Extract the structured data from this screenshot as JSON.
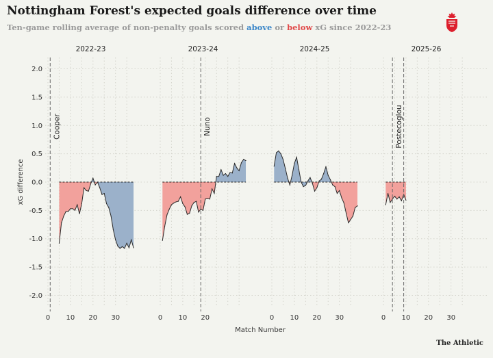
{
  "title": "Nottingham Forest's expected goals difference over time",
  "subtitle": {
    "prefix": "Ten-game rolling average of non-penalty goals scored ",
    "above": "above",
    "middle": " or ",
    "below": "below",
    "suffix": " xG since 2022-23"
  },
  "brand": "The Athletic",
  "colors": {
    "above": "#9bb1ca",
    "below": "#f2a19c",
    "line": "#2a2a2a",
    "grid": "#d4d4cc",
    "above_text": "#3a86c8",
    "below_text": "#e04848"
  },
  "chart_data": {
    "type": "area",
    "xlabel": "Match Number",
    "ylabel": "xG difference",
    "ylim": [
      -2.2,
      2.2
    ],
    "yticks": [
      2.0,
      1.5,
      1.0,
      0.5,
      0.0,
      -0.5,
      -1.0,
      -1.5,
      -2.0
    ],
    "ytick_labels": [
      "2.0",
      "1.5",
      "1.0",
      "0.5",
      "0.0",
      "-0.5",
      "-1.0",
      "-1.5",
      "-2.0"
    ],
    "grid": true,
    "panels": [
      {
        "season": "2022-23",
        "xlim": [
          0,
          38
        ],
        "xticks": [
          0,
          10,
          20,
          30
        ],
        "managers": [
          {
            "name": "Cooper",
            "match": 1
          }
        ],
        "x": [
          5,
          6,
          7,
          8,
          9,
          10,
          11,
          12,
          13,
          14,
          15,
          16,
          17,
          18,
          19,
          20,
          21,
          22,
          23,
          24,
          25,
          26,
          27,
          28,
          29,
          30,
          31,
          32,
          33,
          34,
          35,
          36,
          37,
          38
        ],
        "y": [
          -1.08,
          -0.72,
          -0.6,
          -0.52,
          -0.52,
          -0.47,
          -0.47,
          -0.5,
          -0.4,
          -0.56,
          -0.38,
          -0.1,
          -0.15,
          -0.16,
          -0.03,
          0.07,
          -0.05,
          0.0,
          -0.1,
          -0.22,
          -0.2,
          -0.38,
          -0.45,
          -0.6,
          -0.84,
          -1.02,
          -1.13,
          -1.17,
          -1.14,
          -1.17,
          -1.08,
          -1.16,
          -1.02,
          -1.16
        ]
      },
      {
        "season": "2023-24",
        "xlim": [
          0,
          38
        ],
        "xticks": [
          0,
          10,
          20
        ],
        "managers": [
          {
            "name": "Nuno",
            "match": 18
          }
        ],
        "x": [
          1,
          2,
          3,
          4,
          5,
          6,
          7,
          8,
          9,
          10,
          11,
          12,
          13,
          14,
          15,
          16,
          17,
          18,
          19,
          20,
          21,
          22,
          23,
          24,
          25,
          26,
          27,
          28,
          29,
          30,
          31,
          32,
          33,
          34,
          35,
          36,
          37,
          38
        ],
        "y": [
          -1.03,
          -0.78,
          -0.58,
          -0.48,
          -0.4,
          -0.37,
          -0.35,
          -0.34,
          -0.26,
          -0.38,
          -0.44,
          -0.57,
          -0.55,
          -0.42,
          -0.36,
          -0.34,
          -0.53,
          -0.48,
          -0.5,
          -0.3,
          -0.29,
          -0.3,
          -0.12,
          -0.2,
          0.1,
          0.1,
          0.22,
          0.12,
          0.15,
          0.1,
          0.17,
          0.16,
          0.33,
          0.25,
          0.2,
          0.34,
          0.4,
          0.38
        ]
      },
      {
        "season": "2024-25",
        "xlim": [
          0,
          38
        ],
        "xticks": [
          0,
          10,
          20,
          30
        ],
        "managers": [],
        "x": [
          1,
          2,
          3,
          4,
          5,
          6,
          7,
          8,
          9,
          10,
          11,
          12,
          13,
          14,
          15,
          16,
          17,
          18,
          19,
          20,
          21,
          22,
          23,
          24,
          25,
          26,
          27,
          28,
          29,
          30,
          31,
          32,
          33,
          34,
          35,
          36,
          37,
          38
        ],
        "y": [
          0.28,
          0.52,
          0.55,
          0.5,
          0.4,
          0.24,
          0.07,
          -0.05,
          0.12,
          0.33,
          0.44,
          0.22,
          0.0,
          -0.08,
          -0.06,
          0.02,
          0.08,
          -0.02,
          -0.16,
          -0.1,
          0.02,
          0.05,
          0.15,
          0.27,
          0.12,
          0.04,
          -0.05,
          -0.08,
          -0.2,
          -0.15,
          -0.28,
          -0.37,
          -0.55,
          -0.72,
          -0.66,
          -0.6,
          -0.45,
          -0.42
        ]
      },
      {
        "season": "2025-26",
        "xlim": [
          0,
          38
        ],
        "xticks": [
          0,
          10,
          20,
          30
        ],
        "managers": [
          {
            "name": "Postecoglou",
            "match": 4
          },
          {
            "name": "",
            "match": 9
          }
        ],
        "x": [
          1,
          2,
          3,
          4,
          5,
          6,
          7,
          8,
          9,
          10
        ],
        "y": [
          -0.4,
          -0.2,
          -0.36,
          -0.3,
          -0.25,
          -0.3,
          -0.26,
          -0.33,
          -0.22,
          -0.32
        ]
      }
    ]
  }
}
